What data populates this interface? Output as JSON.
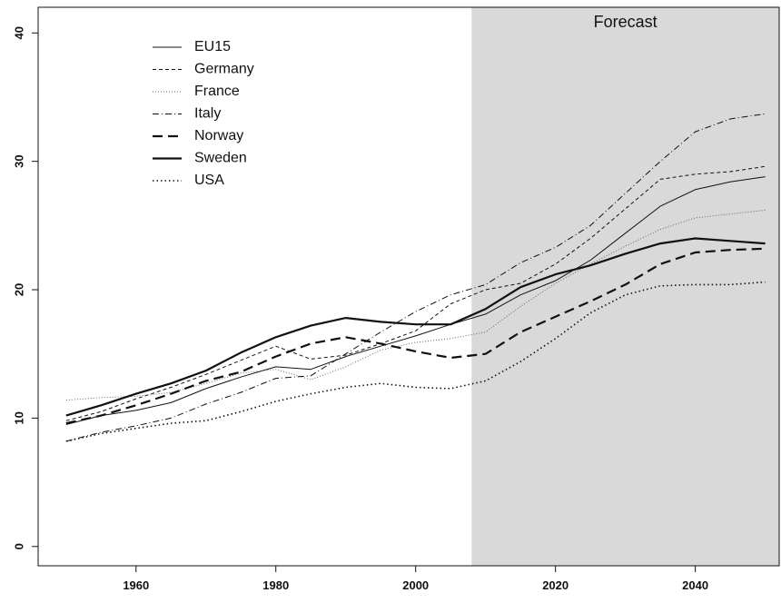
{
  "chart_data": {
    "type": "line",
    "title": "",
    "xlabel": "",
    "ylabel": "",
    "xlim": [
      1946,
      2052
    ],
    "ylim": [
      -1.5,
      42
    ],
    "x_ticks": [
      "1960",
      "1980",
      "2000",
      "2020",
      "2040"
    ],
    "y_ticks": [
      "0",
      "10",
      "20",
      "30",
      "40"
    ],
    "grid": false,
    "legend_position": "top-left",
    "forecast_region": {
      "label": "Forecast",
      "from_x": 2008,
      "to_x": 2052,
      "color": "#d9d9d9"
    },
    "x": [
      1950,
      1955,
      1960,
      1965,
      1970,
      1975,
      1980,
      1985,
      1990,
      1995,
      2000,
      2005,
      2010,
      2015,
      2020,
      2025,
      2030,
      2035,
      2040,
      2045,
      2050
    ],
    "series": [
      {
        "name": "EU15",
        "style": "thin-solid",
        "values": [
          9.5,
          10.2,
          10.6,
          11.2,
          12.3,
          13.2,
          14.0,
          13.8,
          14.8,
          15.6,
          16.4,
          17.3,
          18.1,
          19.6,
          20.7,
          22.3,
          24.4,
          26.5,
          27.8,
          28.4,
          28.8
        ]
      },
      {
        "name": "Germany",
        "style": "dashed",
        "values": [
          9.8,
          10.5,
          11.5,
          12.4,
          13.4,
          14.5,
          15.6,
          14.6,
          14.9,
          15.8,
          16.8,
          18.9,
          20.0,
          20.5,
          22.0,
          24.0,
          26.3,
          28.6,
          29.0,
          29.2,
          29.6
        ]
      },
      {
        "name": "France",
        "style": "fine-dotted",
        "values": [
          11.4,
          11.6,
          11.7,
          12.0,
          12.7,
          13.5,
          13.8,
          13.0,
          14.0,
          15.3,
          15.9,
          16.2,
          16.7,
          18.7,
          20.5,
          22.0,
          23.4,
          24.7,
          25.6,
          25.9,
          26.2
        ]
      },
      {
        "name": "Italy",
        "style": "dash-dot",
        "values": [
          8.2,
          8.9,
          9.4,
          10.0,
          11.1,
          12.0,
          13.1,
          13.3,
          15.0,
          16.7,
          18.3,
          19.6,
          20.4,
          22.1,
          23.3,
          25.0,
          27.5,
          30.0,
          32.3,
          33.3,
          33.7
        ]
      },
      {
        "name": "Norway",
        "style": "long-dash",
        "values": [
          9.6,
          10.2,
          11.0,
          11.9,
          12.9,
          13.6,
          14.8,
          15.8,
          16.3,
          15.8,
          15.2,
          14.7,
          15.0,
          16.7,
          17.9,
          19.1,
          20.4,
          22.0,
          22.9,
          23.1,
          23.2
        ]
      },
      {
        "name": "Sweden",
        "style": "thick-solid",
        "values": [
          10.2,
          11.0,
          11.9,
          12.7,
          13.7,
          15.1,
          16.3,
          17.2,
          17.8,
          17.5,
          17.3,
          17.3,
          18.5,
          20.2,
          21.2,
          21.9,
          22.8,
          23.6,
          24.0,
          23.8,
          23.6
        ]
      },
      {
        "name": "USA",
        "style": "dotted",
        "values": [
          8.2,
          8.8,
          9.2,
          9.6,
          9.8,
          10.5,
          11.3,
          11.9,
          12.4,
          12.7,
          12.4,
          12.3,
          12.9,
          14.4,
          16.2,
          18.2,
          19.6,
          20.3,
          20.4,
          20.4,
          20.6
        ]
      }
    ]
  }
}
